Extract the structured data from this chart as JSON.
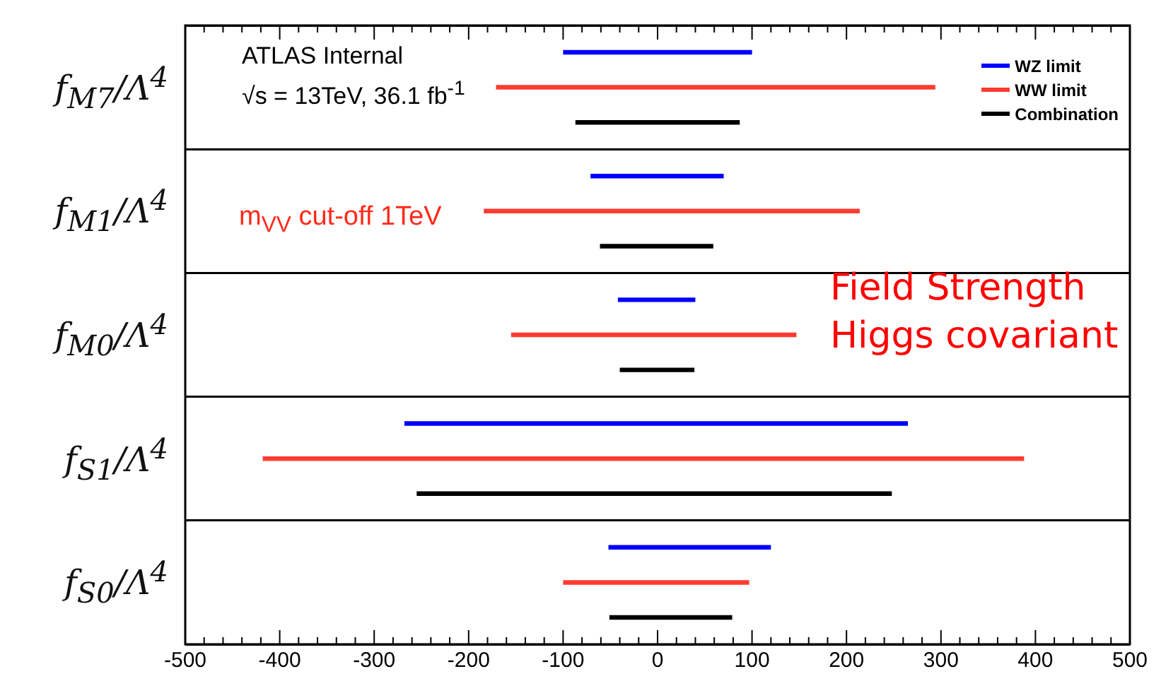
{
  "chart_data": {
    "type": "bar",
    "orientation": "horizontal",
    "categories": [
      "f$_{M7}$/Λ$^{4}$",
      "f$_{M1}$/Λ$^{4}$",
      "f$_{M0}$/Λ$^{4}$",
      "f$_{S1}$/Λ$^{4}$",
      "f$_{S0}$/Λ$^{4}$"
    ],
    "series": [
      {
        "name": "WZ limit",
        "color": "#0000ff",
        "base": [
          -100,
          -71,
          -42,
          -268,
          -52
        ],
        "values": [
          200,
          141,
          82,
          533,
          172
        ]
      },
      {
        "name": "WW limit",
        "color": "#ff3b30",
        "base": [
          -171,
          -184,
          -155,
          -418,
          -100
        ],
        "values": [
          465,
          398,
          302,
          806,
          197
        ]
      },
      {
        "name": "Combination",
        "color": "#000000",
        "base": [
          -87,
          -61,
          -40,
          -255,
          -51
        ],
        "values": [
          174,
          120,
          79,
          503,
          130
        ]
      }
    ],
    "xlim": [
      -500,
      500
    ],
    "xticks": [
      -500,
      {
        "value": -480,
        "label": null
      },
      {
        "value": -460,
        "label": null
      },
      {
        "value": -440,
        "label": null
      },
      {
        "value": -420,
        "label": null
      },
      -400,
      {
        "value": -380,
        "label": null
      },
      {
        "value": -360,
        "label": null
      },
      {
        "value": -340,
        "label": null
      },
      {
        "value": -320,
        "label": null
      },
      -300,
      {
        "value": -280,
        "label": null
      },
      {
        "value": -260,
        "label": null
      },
      {
        "value": -240,
        "label": null
      },
      {
        "value": -220,
        "label": null
      },
      -200,
      {
        "value": -180,
        "label": null
      },
      {
        "value": -160,
        "label": null
      },
      {
        "value": -140,
        "label": null
      },
      {
        "value": -120,
        "label": null
      },
      -100,
      {
        "value": -80,
        "label": null
      },
      {
        "value": -60,
        "label": null
      },
      {
        "value": -40,
        "label": null
      },
      {
        "value": -20,
        "label": null
      },
      0,
      {
        "value": 20,
        "label": null
      },
      {
        "value": 40,
        "label": null
      },
      {
        "value": 60,
        "label": null
      },
      {
        "value": 80,
        "label": null
      },
      100,
      {
        "value": 120,
        "label": null
      },
      {
        "value": 140,
        "label": null
      },
      {
        "value": 160,
        "label": null
      },
      {
        "value": 180,
        "label": null
      },
      200,
      {
        "value": 220,
        "label": null
      },
      {
        "value": 240,
        "label": null
      },
      {
        "value": 260,
        "label": null
      },
      {
        "value": 280,
        "label": null
      },
      300,
      {
        "value": 320,
        "label": null
      },
      {
        "value": 340,
        "label": null
      },
      {
        "value": 360,
        "label": null
      },
      {
        "value": 380,
        "label": null
      },
      400,
      {
        "value": 420,
        "label": null
      },
      {
        "value": 440,
        "label": null
      },
      {
        "value": 460,
        "label": null
      },
      {
        "value": 480,
        "label": null
      },
      500
    ],
    "grid": "y",
    "legend": "top right",
    "annotations": [
      "ATLAS Internal",
      "√s = 13TeV, 36.1 fb$^{-1}$",
      "m$_{VV}$ cut-off 1TeV",
      "Field Strength Higgs covariant"
    ]
  }
}
